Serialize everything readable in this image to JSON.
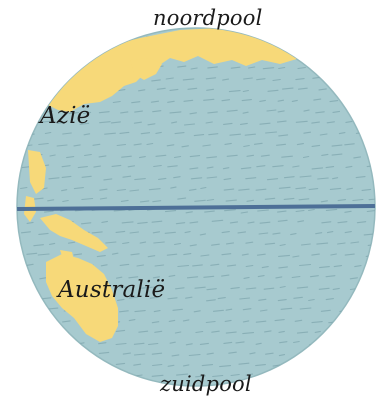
{
  "labels": {
    "north_pole": "noordpool",
    "south_pole": "zuidpool",
    "asia": "Azië",
    "australia": "Australië"
  },
  "colors": {
    "ocean": "#a7cacf",
    "land": "#f7d979",
    "equator": "#4d6f97",
    "waves": "#7fa6ae",
    "outline": "#94b9be"
  }
}
